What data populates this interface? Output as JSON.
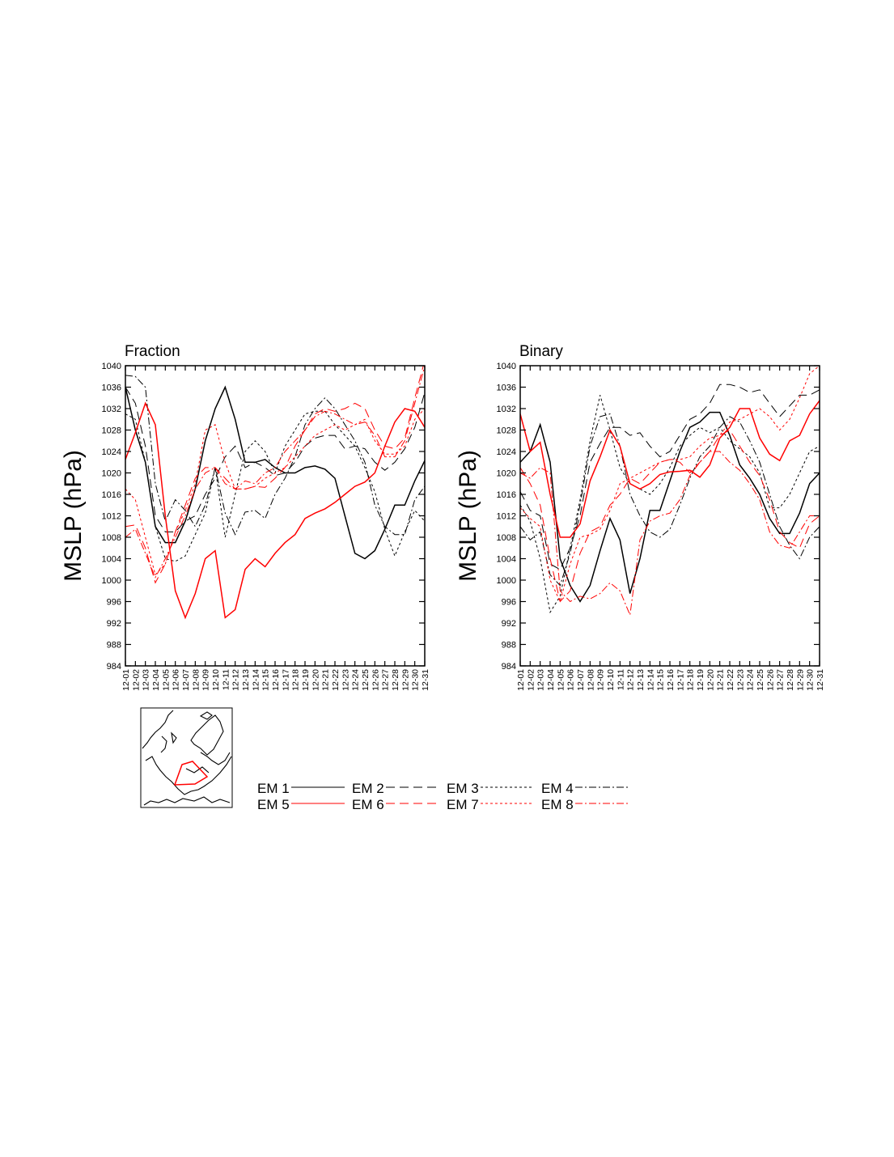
{
  "chart_data": [
    {
      "type": "line",
      "title": "Fraction",
      "xlabel": "",
      "ylabel": "MSLP (hPa)",
      "ylim": [
        984,
        1040
      ],
      "yticks": [
        984,
        988,
        992,
        996,
        1000,
        1004,
        1008,
        1012,
        1016,
        1020,
        1024,
        1028,
        1032,
        1036,
        1040
      ],
      "categories": [
        "12-01",
        "12-02",
        "12-03",
        "12-04",
        "12-05",
        "12-06",
        "12-07",
        "12-08",
        "12-09",
        "12-10",
        "12-11",
        "12-12",
        "12-13",
        "12-14",
        "12-15",
        "12-16",
        "12-17",
        "12-18",
        "12-19",
        "12-20",
        "12-21",
        "12-22",
        "12-23",
        "12-24",
        "12-25",
        "12-26",
        "12-27",
        "12-28",
        "12-29",
        "12-30",
        "12-31"
      ],
      "grid": false,
      "series": [
        {
          "name": "EM 1",
          "values": [
            1036,
            1028,
            1022,
            1010,
            1007,
            1007,
            1011,
            1017,
            1026,
            1032,
            1036,
            1030,
            1022,
            1022,
            1022.5,
            1021,
            1020,
            1020,
            1021,
            1021.3,
            1020.7,
            1019,
            1012,
            1005,
            1004,
            1005.5,
            1009.5,
            1014,
            1014,
            1018.5,
            1022.3
          ]
        },
        {
          "name": "EM 2",
          "values": [
            1036,
            1033,
            1025,
            1012,
            1009,
            1009,
            1011,
            1012,
            1016,
            1019,
            1023,
            1025,
            1021,
            1022,
            1021,
            1019.5,
            1020,
            1022,
            1025,
            1026.5,
            1027,
            1027,
            1024.5,
            1025,
            1024.5,
            1022,
            1020.5,
            1022,
            1024.5,
            1028.5,
            1035
          ]
        },
        {
          "name": "EM 3",
          "values": [
            1031,
            1030,
            1022,
            1010,
            1004,
            1003.5,
            1004.5,
            1008.5,
            1012.5,
            1021,
            1008,
            1016,
            1024,
            1026,
            1024,
            1020,
            1025,
            1028,
            1031,
            1031.5,
            1031.5,
            1029,
            1027,
            1025,
            1021,
            1016.5,
            1009.5,
            1004.5,
            1009,
            1013,
            1011
          ]
        },
        {
          "name": "EM 4",
          "values": [
            1038.2,
            1038,
            1036,
            1018,
            1011,
            1015,
            1013,
            1010,
            1014,
            1021,
            1012.5,
            1008.5,
            1012.7,
            1013,
            1011.5,
            1016,
            1019,
            1023,
            1029,
            1032,
            1034,
            1032,
            1029,
            1026,
            1022,
            1014,
            1010,
            1008.5,
            1008.5,
            1015,
            1017.5
          ]
        },
        {
          "name": "EM 5",
          "values": [
            1022.5,
            1027.5,
            1033,
            1029,
            1012,
            998,
            993,
            997.5,
            1004,
            1005.5,
            993,
            994.5,
            1002,
            1004,
            1002.5,
            1005,
            1007,
            1008.5,
            1011.5,
            1012.5,
            1013.3,
            1014.5,
            1016,
            1017.5,
            1018.3,
            1020,
            1025,
            1029.5,
            1032,
            1031.5,
            1028.5
          ]
        },
        {
          "name": "EM 6",
          "values": [
            1010,
            1010.3,
            1006,
            999.5,
            1003,
            1009,
            1014,
            1019,
            1021,
            1021,
            1019,
            1017,
            1017,
            1017.5,
            1017.3,
            1019,
            1021,
            1025,
            1028,
            1031,
            1032,
            1031.5,
            1032,
            1033,
            1032,
            1028,
            1025,
            1024.5,
            1026.5,
            1034,
            1041
          ]
        },
        {
          "name": "EM 7",
          "values": [
            1017,
            1015,
            1008,
            1001,
            1003,
            1009,
            1013,
            1018,
            1028,
            1029,
            1022,
            1017,
            1017,
            1017.5,
            1019,
            1020,
            1021,
            1023,
            1025,
            1027,
            1028,
            1029,
            1028,
            1029,
            1030,
            1026,
            1023.5,
            1023.5,
            1025,
            1030,
            1032
          ]
        },
        {
          "name": "EM 8",
          "values": [
            1008,
            1009.5,
            1005,
            1000.5,
            1004,
            1008,
            1012,
            1017,
            1020,
            1021,
            1018,
            1017,
            1018.5,
            1018,
            1020,
            1021,
            1024,
            1026,
            1028,
            1030.5,
            1031.5,
            1031,
            1030,
            1029,
            1029.5,
            1027,
            1023,
            1023,
            1026,
            1033,
            1040
          ]
        }
      ]
    },
    {
      "type": "line",
      "title": "Binary",
      "xlabel": "",
      "ylabel": "MSLP (hPa)",
      "ylim": [
        984,
        1040
      ],
      "yticks": [
        984,
        988,
        992,
        996,
        1000,
        1004,
        1008,
        1012,
        1016,
        1020,
        1024,
        1028,
        1032,
        1036,
        1040
      ],
      "categories": [
        "12-01",
        "12-02",
        "12-03",
        "12-04",
        "12-05",
        "12-06",
        "12-07",
        "12-08",
        "12-09",
        "12-10",
        "12-11",
        "12-12",
        "12-13",
        "12-14",
        "12-15",
        "12-16",
        "12-17",
        "12-18",
        "12-19",
        "12-20",
        "12-21",
        "12-22",
        "12-23",
        "12-24",
        "12-25",
        "12-26",
        "12-27",
        "12-28",
        "12-29",
        "12-30",
        "12-31"
      ],
      "grid": false,
      "series": [
        {
          "name": "EM 1",
          "values": [
            1022,
            1024,
            1029,
            1022,
            1004,
            999,
            996,
            999,
            1005.5,
            1011.5,
            1007.5,
            997.5,
            1004,
            1013,
            1013,
            1018.5,
            1024,
            1028.5,
            1029.5,
            1031.3,
            1031.3,
            1027,
            1021.5,
            1019,
            1016,
            1011.5,
            1008.7,
            1008.7,
            1012.5,
            1018,
            1020
          ]
        },
        {
          "name": "EM 2",
          "values": [
            1016.5,
            1013,
            1012,
            1003,
            1002,
            1006,
            1012,
            1022,
            1025.5,
            1028.5,
            1028.5,
            1027,
            1027.5,
            1025,
            1023,
            1024,
            1027,
            1030,
            1031,
            1033,
            1036.5,
            1036.5,
            1036,
            1035,
            1035.5,
            1033,
            1030.5,
            1032.5,
            1034.5,
            1034.5,
            1035.5
          ]
        },
        {
          "name": "EM 3",
          "values": [
            1014,
            1011,
            1004,
            994,
            997,
            1006,
            1015,
            1026,
            1034.5,
            1028,
            1021,
            1018,
            1017,
            1016,
            1018,
            1021,
            1025,
            1027,
            1028.5,
            1027.5,
            1028.5,
            1026,
            1024.5,
            1023,
            1020,
            1013.5,
            1013.5,
            1016,
            1020,
            1024,
            1025
          ]
        },
        {
          "name": "EM 4",
          "values": [
            1010,
            1007.5,
            1009,
            1001,
            999,
            1005,
            1014,
            1025,
            1030.5,
            1031,
            1025,
            1016,
            1012,
            1009,
            1008,
            1009.5,
            1014,
            1019,
            1023,
            1025,
            1028.5,
            1030.5,
            1029.5,
            1026,
            1022,
            1016,
            1010,
            1006.5,
            1004,
            1008,
            1010
          ]
        },
        {
          "name": "EM 5",
          "values": [
            1031,
            1024,
            1025.7,
            1016,
            1008,
            1008,
            1010.5,
            1018.5,
            1023,
            1028,
            1025,
            1018,
            1017,
            1018,
            1019.7,
            1020.2,
            1020.3,
            1020.5,
            1019.2,
            1021.5,
            1026.5,
            1028.5,
            1032,
            1032,
            1026.5,
            1023.5,
            1022.3,
            1026,
            1027,
            1031,
            1033.5
          ]
        },
        {
          "name": "EM 6",
          "values": [
            1021,
            1018,
            1014,
            1004,
            996,
            998,
            1005,
            1009,
            1010,
            1014,
            1016,
            1019,
            1018,
            1020,
            1022,
            1022.5,
            1022,
            1020,
            1022,
            1024,
            1027,
            1028,
            1025,
            1022,
            1019.5,
            1015,
            1009,
            1007,
            1006,
            1010.5,
            1012
          ]
        },
        {
          "name": "EM 7",
          "values": [
            1013.5,
            1011.5,
            1010,
            1000,
            996,
            1003,
            1008,
            1008.5,
            1009.5,
            1013,
            1018,
            1019,
            1020,
            1021,
            1022,
            1022.5,
            1022.5,
            1023,
            1025,
            1026.5,
            1027,
            1029.5,
            1030,
            1031,
            1032,
            1030.5,
            1028,
            1030,
            1034,
            1038.5,
            1040
          ]
        },
        {
          "name": "EM 8",
          "values": [
            1020,
            1019,
            1021,
            1020,
            998,
            996,
            997,
            996.5,
            997.5,
            999.5,
            998,
            993.5,
            1007.5,
            1011,
            1012,
            1012.5,
            1015,
            1019.5,
            1022,
            1024,
            1024,
            1022,
            1020.5,
            1018,
            1015,
            1009,
            1006.5,
            1006,
            1009,
            1012,
            1012
          ]
        }
      ]
    }
  ],
  "styles": {
    "EM 1": {
      "color": "#000000",
      "dash": "solid"
    },
    "EM 2": {
      "color": "#000000",
      "dash": "long-dash"
    },
    "EM 3": {
      "color": "#000000",
      "dash": "short-dash"
    },
    "EM 4": {
      "color": "#000000",
      "dash": "dash-dot"
    },
    "EM 5": {
      "color": "#ff0000",
      "dash": "solid"
    },
    "EM 6": {
      "color": "#ff0000",
      "dash": "long-dash"
    },
    "EM 7": {
      "color": "#ff0000",
      "dash": "short-dash"
    },
    "EM 8": {
      "color": "#ff0000",
      "dash": "dash-dot"
    }
  },
  "legend": {
    "placement": "bottom",
    "entries": [
      "EM 1",
      "EM 2",
      "EM 3",
      "EM 4",
      "EM 5",
      "EM 6",
      "EM 7",
      "EM 8"
    ]
  },
  "inset_map": {
    "region_color": "#ff0000"
  }
}
